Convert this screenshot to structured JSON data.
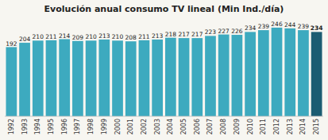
{
  "chart_data": {
    "type": "bar",
    "title": "Evolución anual consumo TV lineal (Min Ind./día)",
    "categories": [
      "1992",
      "1993",
      "1994",
      "1995",
      "1996",
      "1997",
      "1998",
      "1999",
      "2000",
      "2001",
      "2002",
      "2003",
      "2004",
      "2005",
      "2006",
      "2007",
      "2008",
      "2009",
      "2010",
      "2011",
      "2012",
      "2013",
      "2014",
      "2015"
    ],
    "values": [
      192,
      204,
      210,
      211,
      214,
      209,
      210,
      213,
      210,
      208,
      211,
      213,
      218,
      217,
      217,
      223,
      227,
      226,
      234,
      239,
      246,
      244,
      239,
      234
    ],
    "colors": [
      "#3daabf",
      "#3daabf",
      "#3daabf",
      "#3daabf",
      "#3daabf",
      "#3daabf",
      "#3daabf",
      "#3daabf",
      "#3daabf",
      "#3daabf",
      "#3daabf",
      "#3daabf",
      "#3daabf",
      "#3daabf",
      "#3daabf",
      "#3daabf",
      "#3daabf",
      "#3daabf",
      "#3daabf",
      "#3daabf",
      "#3daabf",
      "#3daabf",
      "#3daabf",
      "#1b5c72"
    ],
    "ylim": [
      0,
      270
    ],
    "data_labels": true,
    "grid": false,
    "tick_labels": "x"
  }
}
